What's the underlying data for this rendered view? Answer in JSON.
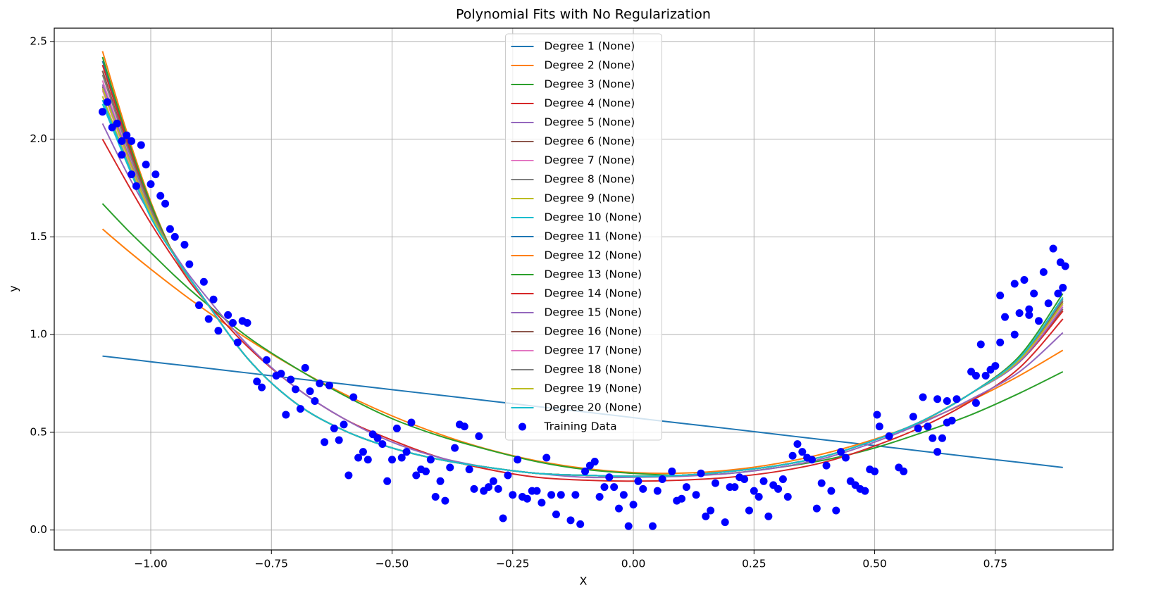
{
  "chart_data": {
    "type": "line",
    "title": "Polynomial Fits with No Regularization",
    "x_label": "X",
    "y_label": "y",
    "xlim": [
      -1.2,
      0.994
    ],
    "ylim": [
      -0.102,
      2.568
    ],
    "xticks": [
      {
        "value": -1.0,
        "label": "−1.00"
      },
      {
        "value": -0.75,
        "label": "−0.75"
      },
      {
        "value": -0.5,
        "label": "−0.50"
      },
      {
        "value": -0.25,
        "label": "−0.25"
      },
      {
        "value": 0,
        "label": "0.00"
      },
      {
        "value": 0.25,
        "label": "0.25"
      },
      {
        "value": 0.5,
        "label": "0.50"
      },
      {
        "value": 0.75,
        "label": "0.75"
      }
    ],
    "yticks": [
      {
        "value": 0,
        "label": "0.0"
      },
      0.5,
      {
        "value": 1,
        "label": "1.0"
      },
      1.5,
      {
        "value": 2,
        "label": "2.0"
      },
      2.5
    ],
    "grid": true,
    "legend": "upper center",
    "x": [
      -1.1,
      -1.05,
      -1.0,
      -0.95,
      -0.9,
      -0.8,
      -0.7,
      -0.6,
      -0.5,
      -0.4,
      -0.3,
      -0.2,
      -0.1,
      0,
      0.1,
      0.2,
      0.3,
      0.4,
      0.5,
      0.6,
      0.7,
      0.8,
      0.89
    ],
    "series": [
      {
        "name": "Degree 1 (None)",
        "color": "#1f77b4",
        "values": [
          0.89,
          0.876,
          0.861,
          0.847,
          0.833,
          0.804,
          0.775,
          0.747,
          0.718,
          0.69,
          0.661,
          0.632,
          0.604,
          0.575,
          0.546,
          0.518,
          0.489,
          0.46,
          0.432,
          0.403,
          0.374,
          0.346,
          0.32
        ]
      },
      {
        "name": "Degree 2 (None)",
        "color": "#ff7f0e",
        "values": [
          1.54,
          1.435,
          1.335,
          1.239,
          1.148,
          0.979,
          0.829,
          0.697,
          0.584,
          0.489,
          0.412,
          0.354,
          0.315,
          0.294,
          0.291,
          0.307,
          0.341,
          0.394,
          0.465,
          0.555,
          0.663,
          0.79,
          0.92
        ]
      },
      {
        "name": "Degree 3 (None)",
        "color": "#2ca02c",
        "values": [
          1.67,
          1.54,
          1.42,
          1.3,
          1.19,
          0.99,
          0.83,
          0.69,
          0.57,
          0.48,
          0.41,
          0.35,
          0.31,
          0.29,
          0.28,
          0.29,
          0.32,
          0.36,
          0.42,
          0.5,
          0.59,
          0.7,
          0.81
        ]
      },
      {
        "name": "Degree 4 (None)",
        "color": "#d62728",
        "values": [
          2.0,
          1.78,
          1.57,
          1.38,
          1.21,
          0.94,
          0.73,
          0.57,
          0.46,
          0.37,
          0.31,
          0.27,
          0.255,
          0.25,
          0.255,
          0.27,
          0.3,
          0.35,
          0.43,
          0.53,
          0.66,
          0.83,
          1.08
        ]
      },
      {
        "name": "Degree 5 (None)",
        "color": "#9467bd",
        "values": [
          2.08,
          1.83,
          1.61,
          1.41,
          1.24,
          0.95,
          0.73,
          0.57,
          0.45,
          0.37,
          0.32,
          0.29,
          0.27,
          0.27,
          0.275,
          0.29,
          0.32,
          0.37,
          0.45,
          0.55,
          0.67,
          0.81,
          1.01
        ]
      },
      {
        "name": "Degree 6 (None)",
        "color": "#8c564b",
        "values": [
          2.27,
          1.93,
          1.62,
          1.4,
          1.22,
          0.88,
          0.65,
          0.51,
          0.42,
          0.36,
          0.32,
          0.29,
          0.28,
          0.275,
          0.28,
          0.3,
          0.33,
          0.38,
          0.46,
          0.56,
          0.7,
          0.86,
          1.13
        ]
      },
      {
        "name": "Degree 7 (None)",
        "color": "#e377c2",
        "values": [
          2.3,
          1.95,
          1.63,
          1.4,
          1.22,
          0.88,
          0.65,
          0.51,
          0.42,
          0.36,
          0.32,
          0.29,
          0.28,
          0.275,
          0.28,
          0.3,
          0.33,
          0.38,
          0.46,
          0.56,
          0.7,
          0.87,
          1.15
        ]
      },
      {
        "name": "Degree 8 (None)",
        "color": "#7f7f7f",
        "values": [
          2.35,
          1.98,
          1.65,
          1.4,
          1.22,
          0.88,
          0.65,
          0.51,
          0.42,
          0.36,
          0.32,
          0.29,
          0.28,
          0.275,
          0.28,
          0.3,
          0.33,
          0.38,
          0.46,
          0.56,
          0.7,
          0.88,
          1.17
        ]
      },
      {
        "name": "Degree 9 (None)",
        "color": "#bcbd22",
        "values": [
          2.22,
          1.9,
          1.61,
          1.4,
          1.22,
          0.88,
          0.65,
          0.51,
          0.42,
          0.36,
          0.32,
          0.29,
          0.28,
          0.275,
          0.28,
          0.3,
          0.33,
          0.38,
          0.46,
          0.56,
          0.7,
          0.87,
          1.16
        ]
      },
      {
        "name": "Degree 10 (None)",
        "color": "#17becf",
        "values": [
          2.2,
          1.89,
          1.6,
          1.4,
          1.22,
          0.88,
          0.65,
          0.51,
          0.42,
          0.36,
          0.32,
          0.29,
          0.28,
          0.275,
          0.28,
          0.3,
          0.33,
          0.38,
          0.46,
          0.56,
          0.7,
          0.88,
          1.18
        ]
      },
      {
        "name": "Degree 11 (None)",
        "color": "#1f77b4",
        "values": [
          2.4,
          2.01,
          1.66,
          1.4,
          1.22,
          0.88,
          0.65,
          0.51,
          0.42,
          0.36,
          0.32,
          0.29,
          0.28,
          0.275,
          0.28,
          0.3,
          0.33,
          0.38,
          0.46,
          0.56,
          0.7,
          0.87,
          1.16
        ]
      },
      {
        "name": "Degree 12 (None)",
        "color": "#ff7f0e",
        "values": [
          2.45,
          2.04,
          1.68,
          1.4,
          1.22,
          0.88,
          0.65,
          0.51,
          0.42,
          0.36,
          0.32,
          0.29,
          0.28,
          0.275,
          0.28,
          0.3,
          0.33,
          0.38,
          0.46,
          0.56,
          0.7,
          0.88,
          1.19
        ]
      },
      {
        "name": "Degree 13 (None)",
        "color": "#2ca02c",
        "values": [
          2.42,
          2.02,
          1.67,
          1.4,
          1.22,
          0.88,
          0.65,
          0.51,
          0.42,
          0.36,
          0.32,
          0.29,
          0.28,
          0.275,
          0.28,
          0.3,
          0.33,
          0.38,
          0.46,
          0.56,
          0.7,
          0.89,
          1.21
        ]
      },
      {
        "name": "Degree 14 (None)",
        "color": "#d62728",
        "values": [
          2.38,
          2.0,
          1.65,
          1.4,
          1.22,
          0.88,
          0.65,
          0.51,
          0.42,
          0.36,
          0.32,
          0.29,
          0.28,
          0.275,
          0.28,
          0.3,
          0.33,
          0.38,
          0.46,
          0.56,
          0.7,
          0.86,
          1.12
        ]
      },
      {
        "name": "Degree 15 (None)",
        "color": "#9467bd",
        "values": [
          2.28,
          1.94,
          1.62,
          1.4,
          1.22,
          0.88,
          0.65,
          0.51,
          0.42,
          0.36,
          0.32,
          0.29,
          0.28,
          0.275,
          0.28,
          0.3,
          0.33,
          0.38,
          0.46,
          0.56,
          0.7,
          0.86,
          1.14
        ]
      },
      {
        "name": "Degree 16 (None)",
        "color": "#8c564b",
        "values": [
          2.35,
          1.98,
          1.65,
          1.4,
          1.22,
          0.88,
          0.65,
          0.51,
          0.42,
          0.36,
          0.32,
          0.29,
          0.28,
          0.275,
          0.28,
          0.3,
          0.33,
          0.38,
          0.46,
          0.56,
          0.7,
          0.88,
          1.17
        ]
      },
      {
        "name": "Degree 17 (None)",
        "color": "#e377c2",
        "values": [
          2.25,
          1.92,
          1.62,
          1.4,
          1.22,
          0.88,
          0.65,
          0.51,
          0.42,
          0.36,
          0.32,
          0.29,
          0.28,
          0.275,
          0.28,
          0.3,
          0.33,
          0.38,
          0.46,
          0.56,
          0.7,
          0.87,
          1.15
        ]
      },
      {
        "name": "Degree 18 (None)",
        "color": "#7f7f7f",
        "values": [
          2.33,
          1.97,
          1.64,
          1.4,
          1.22,
          0.88,
          0.65,
          0.51,
          0.42,
          0.36,
          0.32,
          0.29,
          0.28,
          0.275,
          0.28,
          0.3,
          0.33,
          0.38,
          0.46,
          0.56,
          0.7,
          0.88,
          1.18
        ]
      },
      {
        "name": "Degree 19 (None)",
        "color": "#bcbd22",
        "values": [
          2.26,
          1.93,
          1.62,
          1.4,
          1.22,
          0.88,
          0.65,
          0.51,
          0.42,
          0.36,
          0.32,
          0.29,
          0.28,
          0.275,
          0.28,
          0.3,
          0.33,
          0.38,
          0.46,
          0.56,
          0.7,
          0.87,
          1.16
        ]
      },
      {
        "name": "Degree 20 (None)",
        "color": "#17becf",
        "values": [
          2.18,
          1.88,
          1.6,
          1.4,
          1.22,
          0.88,
          0.65,
          0.51,
          0.42,
          0.36,
          0.32,
          0.29,
          0.28,
          0.275,
          0.28,
          0.3,
          0.33,
          0.38,
          0.46,
          0.56,
          0.7,
          0.88,
          1.19
        ]
      },
      {
        "name": "Training Data",
        "color": "#0000ff",
        "type": "scatter",
        "x": [
          -1.1,
          -1.09,
          -1.08,
          -1.07,
          -1.06,
          -1.06,
          -1.05,
          -1.04,
          -1.04,
          -1.03,
          -1.02,
          -1.01,
          -1.0,
          -0.99,
          -0.98,
          -0.97,
          -0.96,
          -0.95,
          -0.93,
          -0.92,
          -0.9,
          -0.89,
          -0.88,
          -0.87,
          -0.86,
          -0.84,
          -0.83,
          -0.82,
          -0.81,
          -0.8,
          -0.78,
          -0.77,
          -0.76,
          -0.74,
          -0.73,
          -0.72,
          -0.71,
          -0.7,
          -0.69,
          -0.68,
          -0.67,
          -0.66,
          -0.65,
          -0.64,
          -0.63,
          -0.62,
          -0.61,
          -0.6,
          -0.59,
          -0.58,
          -0.57,
          -0.56,
          -0.55,
          -0.54,
          -0.53,
          -0.52,
          -0.51,
          -0.5,
          -0.49,
          -0.48,
          -0.47,
          -0.46,
          -0.45,
          -0.44,
          -0.43,
          -0.42,
          -0.41,
          -0.4,
          -0.39,
          -0.38,
          -0.37,
          -0.36,
          -0.35,
          -0.34,
          -0.33,
          -0.32,
          -0.31,
          -0.3,
          -0.29,
          -0.28,
          -0.27,
          -0.26,
          -0.25,
          -0.24,
          -0.23,
          -0.22,
          -0.21,
          -0.2,
          -0.19,
          -0.18,
          -0.17,
          -0.16,
          -0.15,
          -0.13,
          -0.12,
          -0.11,
          -0.1,
          -0.09,
          -0.08,
          -0.07,
          -0.06,
          -0.05,
          -0.04,
          -0.03,
          -0.02,
          -0.01,
          0.0,
          0.01,
          0.02,
          0.04,
          0.05,
          0.06,
          0.08,
          0.09,
          0.1,
          0.11,
          0.13,
          0.14,
          0.15,
          0.16,
          0.17,
          0.19,
          0.2,
          0.21,
          0.22,
          0.23,
          0.24,
          0.25,
          0.26,
          0.27,
          0.28,
          0.29,
          0.3,
          0.31,
          0.32,
          0.33,
          0.34,
          0.35,
          0.36,
          0.37,
          0.38,
          0.39,
          0.4,
          0.41,
          0.42,
          0.43,
          0.44,
          0.45,
          0.46,
          0.47,
          0.48,
          0.49,
          0.5,
          0.505,
          0.51,
          0.53,
          0.55,
          0.56,
          0.58,
          0.59,
          0.6,
          0.61,
          0.62,
          0.63,
          0.63,
          0.64,
          0.65,
          0.65,
          0.66,
          0.67,
          0.7,
          0.71,
          0.71,
          0.72,
          0.73,
          0.74,
          0.75,
          0.76,
          0.76,
          0.77,
          0.79,
          0.79,
          0.8,
          0.81,
          0.82,
          0.82,
          0.83,
          0.84,
          0.85,
          0.86,
          0.87,
          0.88,
          0.885,
          0.89,
          0.895
        ],
        "values": [
          2.14,
          2.19,
          2.06,
          2.08,
          1.99,
          1.92,
          2.02,
          1.82,
          1.99,
          1.76,
          1.97,
          1.87,
          1.77,
          1.82,
          1.71,
          1.67,
          1.54,
          1.5,
          1.46,
          1.36,
          1.15,
          1.27,
          1.08,
          1.18,
          1.02,
          1.1,
          1.06,
          0.96,
          1.07,
          1.06,
          0.76,
          0.73,
          0.87,
          0.79,
          0.8,
          0.59,
          0.77,
          0.72,
          0.62,
          0.83,
          0.71,
          0.66,
          0.75,
          0.45,
          0.74,
          0.52,
          0.46,
          0.54,
          0.28,
          0.68,
          0.37,
          0.4,
          0.36,
          0.49,
          0.47,
          0.44,
          0.25,
          0.36,
          0.52,
          0.37,
          0.4,
          0.55,
          0.28,
          0.31,
          0.3,
          0.36,
          0.17,
          0.25,
          0.15,
          0.32,
          0.42,
          0.54,
          0.53,
          0.31,
          0.21,
          0.48,
          0.2,
          0.22,
          0.25,
          0.21,
          0.06,
          0.28,
          0.18,
          0.36,
          0.17,
          0.16,
          0.2,
          0.2,
          0.14,
          0.37,
          0.18,
          0.08,
          0.18,
          0.05,
          0.18,
          0.03,
          0.3,
          0.33,
          0.35,
          0.17,
          0.22,
          0.27,
          0.22,
          0.11,
          0.18,
          0.02,
          0.13,
          0.25,
          0.21,
          0.02,
          0.2,
          0.26,
          0.3,
          0.15,
          0.16,
          0.22,
          0.18,
          0.29,
          0.07,
          0.1,
          0.24,
          0.04,
          0.22,
          0.22,
          0.27,
          0.26,
          0.1,
          0.2,
          0.17,
          0.25,
          0.07,
          0.23,
          0.21,
          0.26,
          0.17,
          0.38,
          0.44,
          0.4,
          0.37,
          0.36,
          0.11,
          0.24,
          0.33,
          0.2,
          0.1,
          0.4,
          0.37,
          0.25,
          0.23,
          0.21,
          0.2,
          0.31,
          0.3,
          0.59,
          0.53,
          0.48,
          0.32,
          0.3,
          0.58,
          0.52,
          0.68,
          0.53,
          0.47,
          0.67,
          0.4,
          0.47,
          0.55,
          0.66,
          0.56,
          0.67,
          0.81,
          0.79,
          0.65,
          0.95,
          0.79,
          0.82,
          0.84,
          0.96,
          1.2,
          1.09,
          1.26,
          1.0,
          1.11,
          1.28,
          1.13,
          1.1,
          1.21,
          1.07,
          1.32,
          1.16,
          1.44,
          1.21,
          1.37,
          1.24,
          1.35
        ]
      }
    ]
  }
}
